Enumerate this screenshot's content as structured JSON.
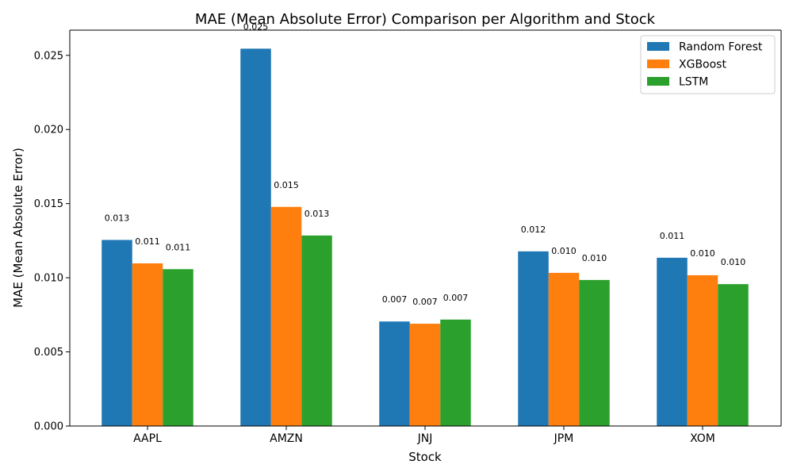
{
  "chart_data": {
    "type": "bar",
    "title": "MAE (Mean Absolute Error) Comparison per Algorithm and Stock",
    "xlabel": "Stock",
    "ylabel": "MAE (Mean Absolute Error)",
    "categories": [
      "AAPL",
      "AMZN",
      "JNJ",
      "JPM",
      "XOM"
    ],
    "ylim": [
      0,
      0.0267
    ],
    "yticks": [
      "0.000",
      "0.005",
      "0.010",
      "0.015",
      "0.020",
      "0.025"
    ],
    "legend_position": "top-right",
    "grid": false,
    "series": [
      {
        "name": "Random Forest",
        "color": "#1f77b4",
        "values": [
          0.01255,
          0.02545,
          0.00705,
          0.01178,
          0.01135
        ],
        "labels": [
          "0.013",
          "0.025",
          "0.007",
          "0.012",
          "0.011"
        ]
      },
      {
        "name": "XGBoost",
        "color": "#ff7f0e",
        "values": [
          0.01097,
          0.01478,
          0.0069,
          0.01033,
          0.01017
        ],
        "labels": [
          "0.011",
          "0.015",
          "0.007",
          "0.010",
          "0.010"
        ]
      },
      {
        "name": "LSTM",
        "color": "#2ca02c",
        "values": [
          0.01058,
          0.01285,
          0.00718,
          0.00985,
          0.00957
        ],
        "labels": [
          "0.011",
          "0.013",
          "0.007",
          "0.010",
          "0.010"
        ]
      }
    ]
  }
}
